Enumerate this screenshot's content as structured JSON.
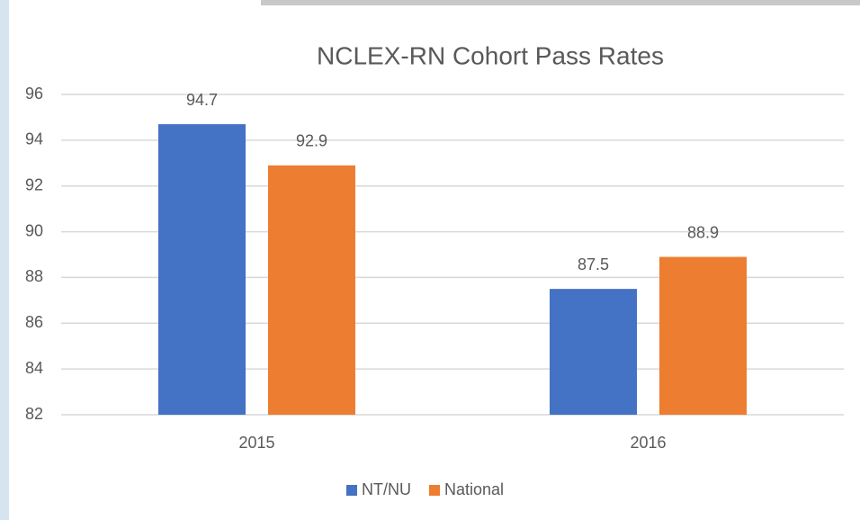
{
  "chart_data": {
    "type": "bar",
    "title": "NCLEX-RN Cohort Pass Rates",
    "categories": [
      "2015",
      "2016"
    ],
    "series": [
      {
        "name": "NT/NU",
        "color": "#4472c4",
        "values": [
          94.7,
          87.5
        ]
      },
      {
        "name": "National",
        "color": "#ed7d31",
        "values": [
          92.9,
          88.9
        ]
      }
    ],
    "ylim": [
      82,
      96
    ],
    "yticks": [
      82,
      84,
      86,
      88,
      90,
      92,
      94,
      96
    ],
    "grid": true,
    "legend": "bottom"
  }
}
